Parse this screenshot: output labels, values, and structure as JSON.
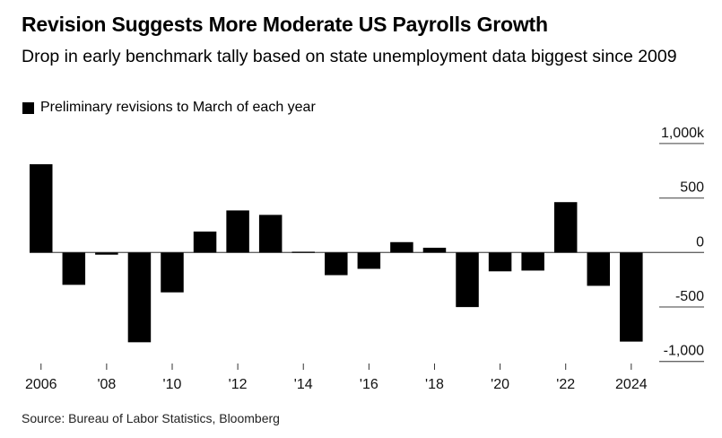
{
  "title": "Revision Suggests More Moderate US Payrolls Growth",
  "subtitle": "Drop in early benchmark tally based on state unemployment data biggest since 2009",
  "source": "Source: Bureau of Labor Statistics, Bloomberg",
  "chart_data": {
    "type": "bar",
    "legend": {
      "label": "Preliminary revisions to March of each year",
      "placement": "top-left",
      "color": "#000000"
    },
    "categories": [
      "2006",
      "2007",
      "2008",
      "2009",
      "2010",
      "2011",
      "2012",
      "2013",
      "2014",
      "2015",
      "2016",
      "2017",
      "2018",
      "2019",
      "2020",
      "2021",
      "2022",
      "2023",
      "2024"
    ],
    "values": [
      810,
      -297,
      -20,
      -824,
      -366,
      192,
      386,
      345,
      7,
      -208,
      -150,
      95,
      43,
      -501,
      -173,
      -166,
      462,
      -306,
      -818
    ],
    "x_tick_labels": [
      {
        "category": "2006",
        "label": "2006"
      },
      {
        "category": "2008",
        "label": "'08"
      },
      {
        "category": "2010",
        "label": "'10"
      },
      {
        "category": "2012",
        "label": "'12"
      },
      {
        "category": "2014",
        "label": "'14"
      },
      {
        "category": "2016",
        "label": "'16"
      },
      {
        "category": "2018",
        "label": "'18"
      },
      {
        "category": "2020",
        "label": "'20"
      },
      {
        "category": "2022",
        "label": "'22"
      },
      {
        "category": "2024",
        "label": "2024"
      }
    ],
    "y_ticks": [
      {
        "value": 1000,
        "label": "1,000k"
      },
      {
        "value": 500,
        "label": "500"
      },
      {
        "value": 0,
        "label": "0"
      },
      {
        "value": -500,
        "label": "-500"
      },
      {
        "value": -1000,
        "label": "-1,000"
      }
    ],
    "ylim": [
      -1000,
      1000
    ],
    "y_axis_side": "right",
    "grid": true,
    "bar_color": "#000000",
    "xlabel": "",
    "ylabel": ""
  }
}
